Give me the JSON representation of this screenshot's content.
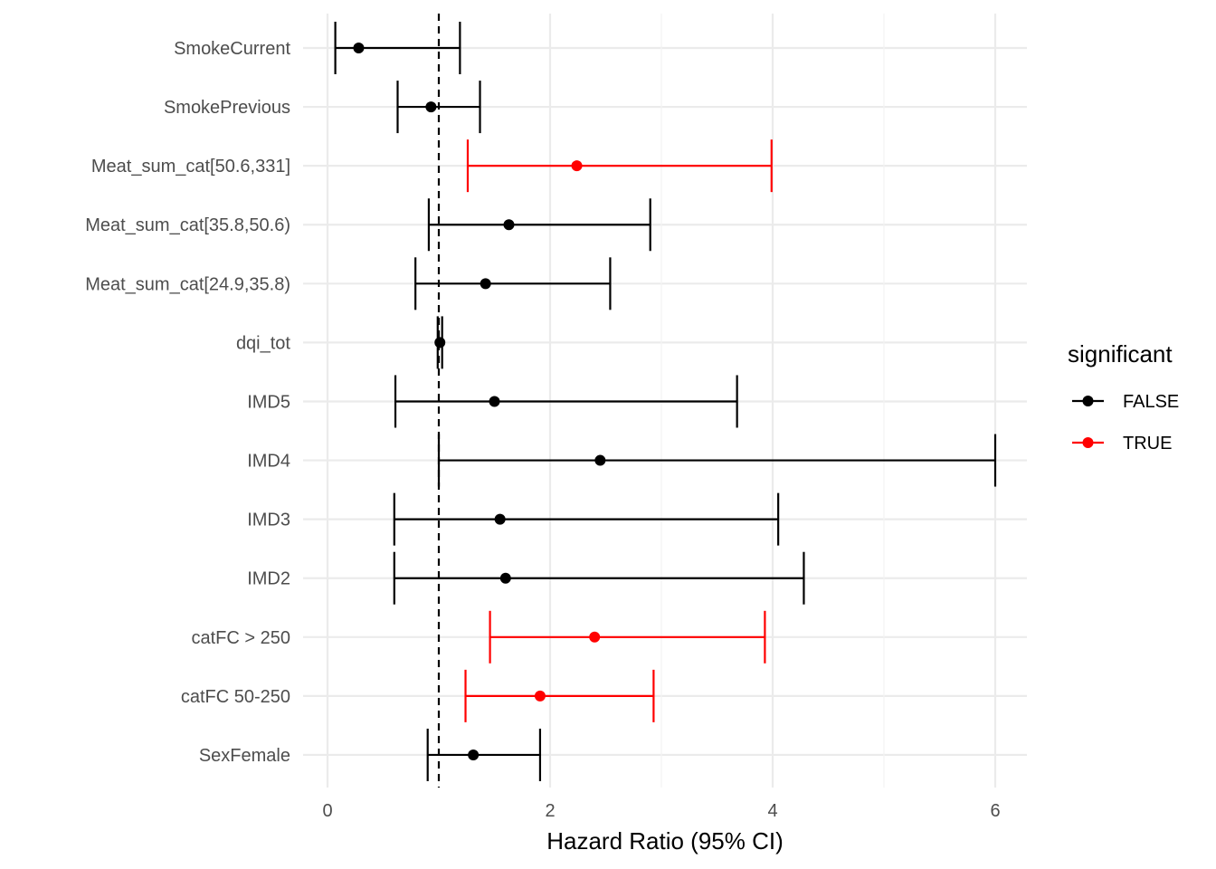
{
  "chart_data": {
    "type": "forest",
    "title": "",
    "xlabel": "Hazard Ratio (95% CI)",
    "ylabel": "",
    "xlim": [
      -0.22,
      6.28
    ],
    "x_ticks": [
      0,
      2,
      4,
      6
    ],
    "x_minor_gridlines": [
      1,
      3,
      5
    ],
    "reference_line": {
      "x": 1,
      "style": "dashed",
      "color": "#000000"
    },
    "grid": true,
    "legend": {
      "title": "significant",
      "position": "right",
      "entries": [
        {
          "label": "FALSE",
          "color": "#000000"
        },
        {
          "label": "TRUE",
          "color": "#ff0000"
        }
      ]
    },
    "rows": [
      {
        "term": "SmokeCurrent",
        "hr": 0.28,
        "lower": 0.07,
        "upper": 1.19,
        "significant": false
      },
      {
        "term": "SmokePrevious",
        "hr": 0.93,
        "lower": 0.63,
        "upper": 1.37,
        "significant": false
      },
      {
        "term": "Meat_sum_cat[50.6,331]",
        "hr": 2.24,
        "lower": 1.26,
        "upper": 3.99,
        "significant": true
      },
      {
        "term": "Meat_sum_cat[35.8,50.6)",
        "hr": 1.63,
        "lower": 0.91,
        "upper": 2.9,
        "significant": false
      },
      {
        "term": "Meat_sum_cat[24.9,35.8)",
        "hr": 1.42,
        "lower": 0.79,
        "upper": 2.54,
        "significant": false
      },
      {
        "term": "dqi_tot",
        "hr": 1.01,
        "lower": 0.99,
        "upper": 1.03,
        "significant": false
      },
      {
        "term": "IMD5",
        "hr": 1.5,
        "lower": 0.61,
        "upper": 3.68,
        "significant": false
      },
      {
        "term": "IMD4",
        "hr": 2.45,
        "lower": 1.0,
        "upper": 6.0,
        "significant": false
      },
      {
        "term": "IMD3",
        "hr": 1.55,
        "lower": 0.6,
        "upper": 4.05,
        "significant": false
      },
      {
        "term": "IMD2",
        "hr": 1.6,
        "lower": 0.6,
        "upper": 4.28,
        "significant": false
      },
      {
        "term": "catFC > 250",
        "hr": 2.4,
        "lower": 1.46,
        "upper": 3.93,
        "significant": true
      },
      {
        "term": "catFC 50-250",
        "hr": 1.91,
        "lower": 1.24,
        "upper": 2.93,
        "significant": true
      },
      {
        "term": "SexFemale",
        "hr": 1.31,
        "lower": 0.9,
        "upper": 1.91,
        "significant": false
      }
    ]
  }
}
